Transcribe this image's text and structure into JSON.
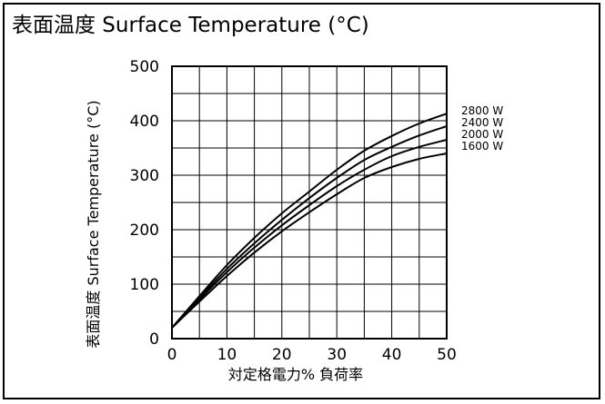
{
  "chart_data": {
    "type": "line",
    "title": "表面温度 Surface Temperature (°C)",
    "xlabel": "対定格電力% 負荷率",
    "ylabel": "表面温度 Surface Temperature (°C)",
    "xlim": [
      0,
      50
    ],
    "ylim": [
      0,
      500
    ],
    "xticks": [
      0,
      10,
      20,
      30,
      40,
      50
    ],
    "yticks": [
      0,
      100,
      200,
      300,
      400,
      500
    ],
    "x_minor_step": 5,
    "y_minor_step": 50,
    "grid": true,
    "legend": "right-inline",
    "series": [
      {
        "name": "2800 W",
        "x": [
          0,
          5,
          10,
          15,
          20,
          25,
          30,
          35,
          40,
          45,
          50
        ],
        "y": [
          20,
          78,
          135,
          185,
          230,
          270,
          310,
          345,
          372,
          395,
          413
        ]
      },
      {
        "name": "2400 W",
        "x": [
          0,
          5,
          10,
          15,
          20,
          25,
          30,
          35,
          40,
          45,
          50
        ],
        "y": [
          20,
          75,
          128,
          175,
          218,
          258,
          295,
          328,
          352,
          373,
          390
        ]
      },
      {
        "name": "2000 W",
        "x": [
          0,
          5,
          10,
          15,
          20,
          25,
          30,
          35,
          40,
          45,
          50
        ],
        "y": [
          20,
          72,
          122,
          167,
          208,
          245,
          280,
          310,
          335,
          352,
          365
        ]
      },
      {
        "name": "1600 W",
        "x": [
          0,
          5,
          10,
          15,
          20,
          25,
          30,
          35,
          40,
          45,
          50
        ],
        "y": [
          20,
          68,
          115,
          158,
          197,
          232,
          265,
          295,
          315,
          330,
          340
        ]
      }
    ]
  }
}
